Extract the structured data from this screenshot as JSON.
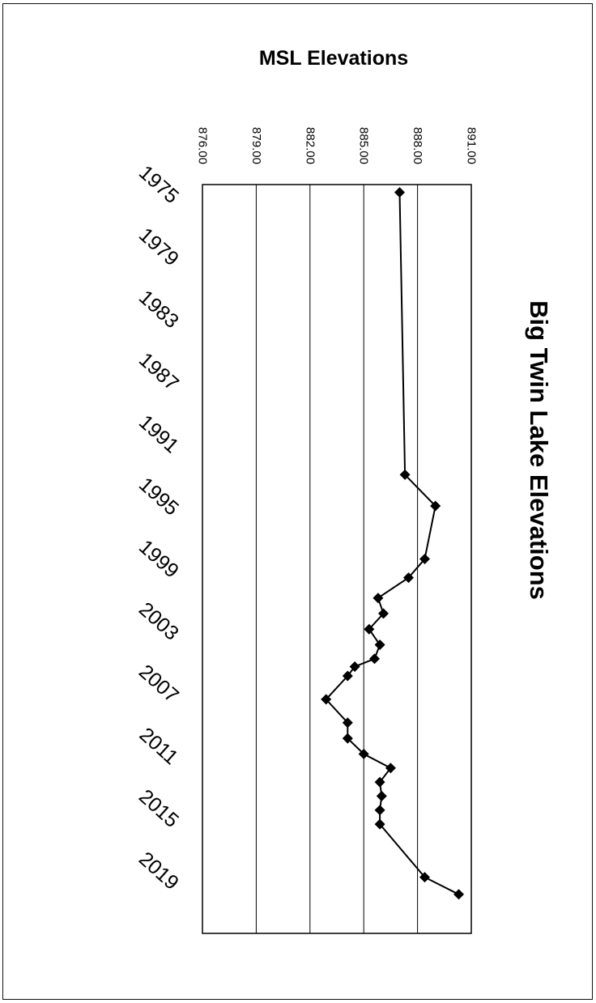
{
  "chart_data": {
    "type": "line",
    "title": "Big Twin Lake Elevations",
    "ylabel": "MSL Elevations",
    "xlabel": "",
    "x_ticks": [
      "1975",
      "1979",
      "1983",
      "1987",
      "1991",
      "1995",
      "1999",
      "2003",
      "2007",
      "2011",
      "2015",
      "2019"
    ],
    "y_ticks": [
      "876.00",
      "879.00",
      "882.00",
      "885.00",
      "888.00",
      "891.00"
    ],
    "xlim": [
      1975,
      2023
    ],
    "ylim": [
      876,
      891
    ],
    "grid": true,
    "legend": "none",
    "marker": "diamond",
    "line_color": "#000000",
    "series": [
      {
        "x": [
          1975.5,
          1993.6,
          1995.6,
          1999.0,
          2000.2,
          2001.5,
          2002.5,
          2003.5,
          2004.5,
          2005.4,
          2005.9,
          2006.5,
          2008.0,
          2009.5,
          2010.5,
          2011.5,
          2012.4,
          2013.3,
          2014.2,
          2015.1,
          2016.0,
          2019.4,
          2020.5
        ],
        "y": [
          887.0,
          887.3,
          889.0,
          888.4,
          887.5,
          885.8,
          886.1,
          885.3,
          885.9,
          885.6,
          884.5,
          884.1,
          882.9,
          884.1,
          884.1,
          885.0,
          886.5,
          885.9,
          886.0,
          885.9,
          885.9,
          888.4,
          890.3
        ]
      }
    ]
  }
}
